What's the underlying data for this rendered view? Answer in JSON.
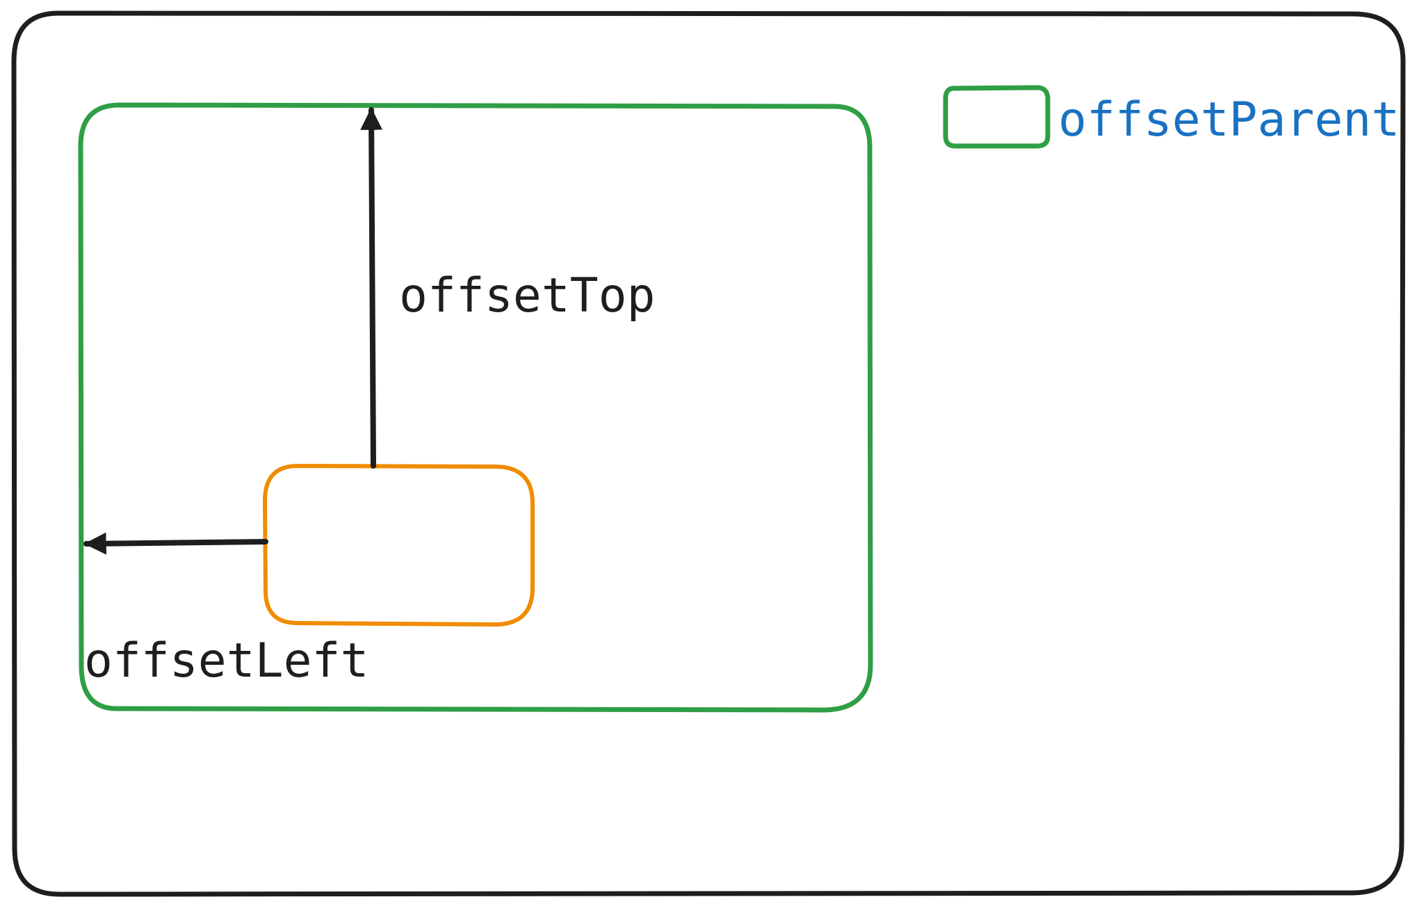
{
  "labels": {
    "offset_top": "offsetTop",
    "offset_left": "offsetLeft",
    "legend": "offsetParent"
  },
  "colors": {
    "outline": "#1e1e1e",
    "offset_parent": "#2f9e44",
    "element": "#f08c00",
    "arrow": "#1e1e1e",
    "legend_text": "#1971c2",
    "label_text": "#1e1e1e",
    "background": "#ffffff"
  }
}
